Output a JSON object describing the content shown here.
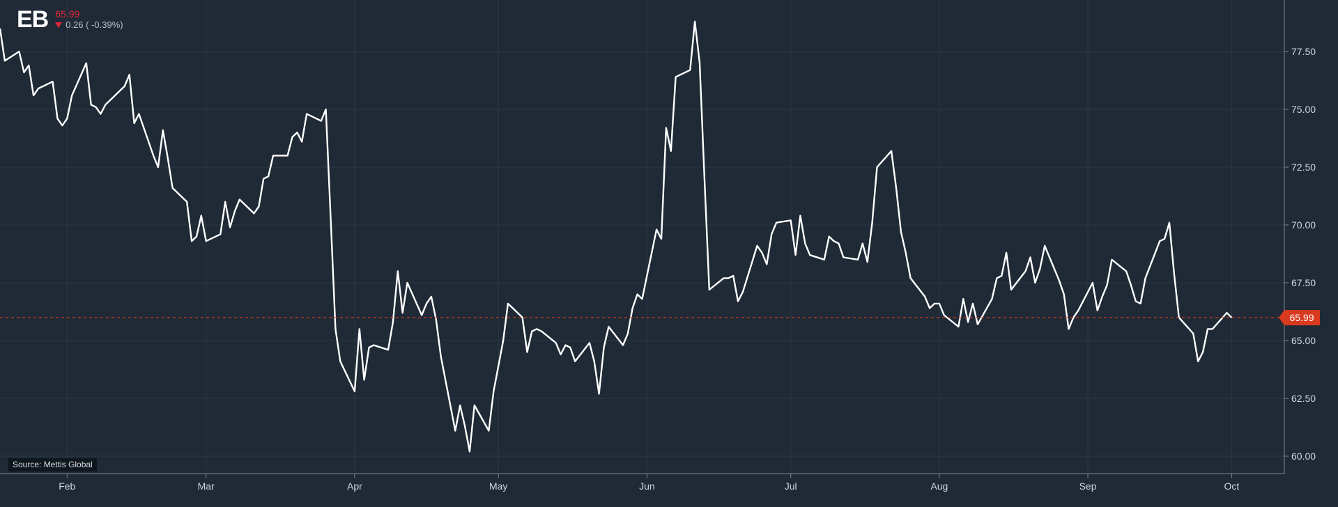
{
  "header": {
    "ticker": "EB",
    "price": "65.99",
    "change": "0.26 ( -0.39%)",
    "direction_icon": "triangle-down-icon"
  },
  "source": "Source: Mettis Global",
  "colors": {
    "background": "#1f2a36",
    "line": "#ffffff",
    "last_price": "#d93a1f",
    "price_text_down": "#e0263a",
    "grid": "#2c3845",
    "axis_text": "#cfd6dd"
  },
  "chart_data": {
    "type": "line",
    "title": "",
    "xlabel": "",
    "ylabel": "",
    "grid": true,
    "ylim": [
      59.5,
      79.5
    ],
    "y_ticks": [
      "60.00",
      "62.50",
      "65.00",
      "67.50",
      "70.00",
      "72.50",
      "75.00",
      "77.50"
    ],
    "x_ticks": [
      {
        "label": "Feb",
        "date": "2024-02-01"
      },
      {
        "label": "Mar",
        "date": "2024-03-01"
      },
      {
        "label": "Apr",
        "date": "2024-04-01"
      },
      {
        "label": "May",
        "date": "2024-05-01"
      },
      {
        "label": "Jun",
        "date": "2024-06-01"
      },
      {
        "label": "Jul",
        "date": "2024-07-01"
      },
      {
        "label": "Aug",
        "date": "2024-08-01"
      },
      {
        "label": "Sep",
        "date": "2024-09-01"
      },
      {
        "label": "Oct",
        "date": "2024-10-01"
      }
    ],
    "xlim": [
      "2024-01-18",
      "2024-10-12"
    ],
    "last_price": {
      "value": 65.99,
      "label": "65.99"
    },
    "series": [
      {
        "points": [
          [
            "2024-01-18",
            78.5
          ],
          [
            "2024-01-19",
            77.1
          ],
          [
            "2024-01-22",
            77.5
          ],
          [
            "2024-01-23",
            76.6
          ],
          [
            "2024-01-24",
            76.9
          ],
          [
            "2024-01-25",
            75.6
          ],
          [
            "2024-01-26",
            75.9
          ],
          [
            "2024-01-29",
            76.2
          ],
          [
            "2024-01-30",
            74.6
          ],
          [
            "2024-01-31",
            74.3
          ],
          [
            "2024-02-01",
            74.6
          ],
          [
            "2024-02-02",
            75.6
          ],
          [
            "2024-02-05",
            77.0
          ],
          [
            "2024-02-06",
            75.2
          ],
          [
            "2024-02-07",
            75.1
          ],
          [
            "2024-02-08",
            74.8
          ],
          [
            "2024-02-09",
            75.2
          ],
          [
            "2024-02-12",
            75.8
          ],
          [
            "2024-02-13",
            76.0
          ],
          [
            "2024-02-14",
            76.5
          ],
          [
            "2024-02-15",
            74.4
          ],
          [
            "2024-02-16",
            74.8
          ],
          [
            "2024-02-19",
            73.0
          ],
          [
            "2024-02-20",
            72.5
          ],
          [
            "2024-02-21",
            74.1
          ],
          [
            "2024-02-22",
            72.9
          ],
          [
            "2024-02-23",
            71.6
          ],
          [
            "2024-02-26",
            71.0
          ],
          [
            "2024-02-27",
            69.3
          ],
          [
            "2024-02-28",
            69.5
          ],
          [
            "2024-02-29",
            70.4
          ],
          [
            "2024-03-01",
            69.3
          ],
          [
            "2024-03-04",
            69.6
          ],
          [
            "2024-03-05",
            71.0
          ],
          [
            "2024-03-06",
            69.9
          ],
          [
            "2024-03-07",
            70.6
          ],
          [
            "2024-03-08",
            71.1
          ],
          [
            "2024-03-11",
            70.5
          ],
          [
            "2024-03-12",
            70.8
          ],
          [
            "2024-03-13",
            72.0
          ],
          [
            "2024-03-14",
            72.1
          ],
          [
            "2024-03-15",
            73.0
          ],
          [
            "2024-03-18",
            73.0
          ],
          [
            "2024-03-19",
            73.8
          ],
          [
            "2024-03-20",
            74.0
          ],
          [
            "2024-03-21",
            73.6
          ],
          [
            "2024-03-22",
            74.8
          ],
          [
            "2024-03-25",
            74.5
          ],
          [
            "2024-03-26",
            75.0
          ],
          [
            "2024-03-27",
            70.3
          ],
          [
            "2024-03-28",
            65.5
          ],
          [
            "2024-03-29",
            64.1
          ],
          [
            "2024-04-01",
            62.8
          ],
          [
            "2024-04-02",
            65.5
          ],
          [
            "2024-04-03",
            63.3
          ],
          [
            "2024-04-04",
            64.7
          ],
          [
            "2024-04-05",
            64.8
          ],
          [
            "2024-04-08",
            64.6
          ],
          [
            "2024-04-09",
            65.8
          ],
          [
            "2024-04-10",
            68.0
          ],
          [
            "2024-04-11",
            66.2
          ],
          [
            "2024-04-12",
            67.5
          ],
          [
            "2024-04-15",
            66.1
          ],
          [
            "2024-04-16",
            66.6
          ],
          [
            "2024-04-17",
            66.9
          ],
          [
            "2024-04-18",
            65.9
          ],
          [
            "2024-04-19",
            64.3
          ],
          [
            "2024-04-22",
            61.1
          ],
          [
            "2024-04-23",
            62.2
          ],
          [
            "2024-04-24",
            61.3
          ],
          [
            "2024-04-25",
            60.2
          ],
          [
            "2024-04-26",
            62.2
          ],
          [
            "2024-04-29",
            61.1
          ],
          [
            "2024-04-30",
            62.8
          ],
          [
            "2024-05-01",
            63.9
          ],
          [
            "2024-05-02",
            65.0
          ],
          [
            "2024-05-03",
            66.6
          ],
          [
            "2024-05-06",
            66.0
          ],
          [
            "2024-05-07",
            64.5
          ],
          [
            "2024-05-08",
            65.4
          ],
          [
            "2024-05-09",
            65.5
          ],
          [
            "2024-05-10",
            65.4
          ],
          [
            "2024-05-13",
            64.9
          ],
          [
            "2024-05-14",
            64.4
          ],
          [
            "2024-05-15",
            64.8
          ],
          [
            "2024-05-16",
            64.7
          ],
          [
            "2024-05-17",
            64.1
          ],
          [
            "2024-05-20",
            64.9
          ],
          [
            "2024-05-21",
            64.1
          ],
          [
            "2024-05-22",
            62.7
          ],
          [
            "2024-05-23",
            64.7
          ],
          [
            "2024-05-24",
            65.6
          ],
          [
            "2024-05-27",
            64.8
          ],
          [
            "2024-05-28",
            65.3
          ],
          [
            "2024-05-29",
            66.4
          ],
          [
            "2024-05-30",
            67.0
          ],
          [
            "2024-05-31",
            66.8
          ],
          [
            "2024-06-03",
            69.8
          ],
          [
            "2024-06-04",
            69.4
          ],
          [
            "2024-06-05",
            74.2
          ],
          [
            "2024-06-06",
            73.2
          ],
          [
            "2024-06-07",
            76.4
          ],
          [
            "2024-06-10",
            76.7
          ],
          [
            "2024-06-11",
            78.8
          ],
          [
            "2024-06-12",
            77.0
          ],
          [
            "2024-06-13",
            72.0
          ],
          [
            "2024-06-14",
            67.2
          ],
          [
            "2024-06-17",
            67.7
          ],
          [
            "2024-06-18",
            67.7
          ],
          [
            "2024-06-19",
            67.8
          ],
          [
            "2024-06-20",
            66.7
          ],
          [
            "2024-06-21",
            67.1
          ],
          [
            "2024-06-24",
            69.1
          ],
          [
            "2024-06-25",
            68.8
          ],
          [
            "2024-06-26",
            68.3
          ],
          [
            "2024-06-27",
            69.6
          ],
          [
            "2024-06-28",
            70.1
          ],
          [
            "2024-07-01",
            70.2
          ],
          [
            "2024-07-02",
            68.7
          ],
          [
            "2024-07-03",
            70.4
          ],
          [
            "2024-07-04",
            69.2
          ],
          [
            "2024-07-05",
            68.7
          ],
          [
            "2024-07-08",
            68.5
          ],
          [
            "2024-07-09",
            69.5
          ],
          [
            "2024-07-10",
            69.3
          ],
          [
            "2024-07-11",
            69.2
          ],
          [
            "2024-07-12",
            68.6
          ],
          [
            "2024-07-15",
            68.5
          ],
          [
            "2024-07-16",
            69.2
          ],
          [
            "2024-07-17",
            68.4
          ],
          [
            "2024-07-18",
            70.1
          ],
          [
            "2024-07-19",
            72.5
          ],
          [
            "2024-07-22",
            73.2
          ],
          [
            "2024-07-23",
            71.6
          ],
          [
            "2024-07-24",
            69.7
          ],
          [
            "2024-07-25",
            68.8
          ],
          [
            "2024-07-26",
            67.7
          ],
          [
            "2024-07-29",
            66.9
          ],
          [
            "2024-07-30",
            66.4
          ],
          [
            "2024-07-31",
            66.6
          ],
          [
            "2024-08-01",
            66.6
          ],
          [
            "2024-08-02",
            66.1
          ],
          [
            "2024-08-05",
            65.6
          ],
          [
            "2024-08-06",
            66.8
          ],
          [
            "2024-08-07",
            65.8
          ],
          [
            "2024-08-08",
            66.6
          ],
          [
            "2024-08-09",
            65.7
          ],
          [
            "2024-08-12",
            66.8
          ],
          [
            "2024-08-13",
            67.7
          ],
          [
            "2024-08-14",
            67.8
          ],
          [
            "2024-08-15",
            68.8
          ],
          [
            "2024-08-16",
            67.2
          ],
          [
            "2024-08-19",
            68.0
          ],
          [
            "2024-08-20",
            68.6
          ],
          [
            "2024-08-21",
            67.5
          ],
          [
            "2024-08-22",
            68.1
          ],
          [
            "2024-08-23",
            69.1
          ],
          [
            "2024-08-26",
            67.6
          ],
          [
            "2024-08-27",
            67.0
          ],
          [
            "2024-08-28",
            65.5
          ],
          [
            "2024-08-29",
            66.0
          ],
          [
            "2024-08-30",
            66.3
          ],
          [
            "2024-09-02",
            67.5
          ],
          [
            "2024-09-03",
            66.3
          ],
          [
            "2024-09-04",
            66.9
          ],
          [
            "2024-09-05",
            67.4
          ],
          [
            "2024-09-06",
            68.5
          ],
          [
            "2024-09-09",
            68.0
          ],
          [
            "2024-09-10",
            67.4
          ],
          [
            "2024-09-11",
            66.7
          ],
          [
            "2024-09-12",
            66.6
          ],
          [
            "2024-09-13",
            67.7
          ],
          [
            "2024-09-16",
            69.3
          ],
          [
            "2024-09-17",
            69.4
          ],
          [
            "2024-09-18",
            70.1
          ],
          [
            "2024-09-19",
            67.9
          ],
          [
            "2024-09-20",
            66.0
          ],
          [
            "2024-09-23",
            65.3
          ],
          [
            "2024-09-24",
            64.1
          ],
          [
            "2024-09-25",
            64.5
          ],
          [
            "2024-09-26",
            65.5
          ],
          [
            "2024-09-27",
            65.5
          ],
          [
            "2024-09-30",
            66.2
          ],
          [
            "2024-10-01",
            65.99
          ]
        ]
      }
    ]
  }
}
